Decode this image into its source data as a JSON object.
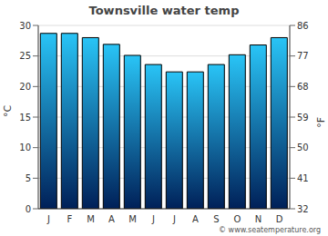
{
  "chart_data": {
    "type": "bar",
    "title": "Townsville water temp",
    "categories": [
      "J",
      "F",
      "M",
      "A",
      "M",
      "J",
      "J",
      "A",
      "S",
      "O",
      "N",
      "D"
    ],
    "values": [
      28.7,
      28.7,
      28.0,
      26.9,
      25.1,
      23.6,
      22.4,
      22.4,
      23.6,
      25.2,
      26.8,
      28.0
    ],
    "color": "#29c4f6",
    "y_label": "°C",
    "y2_label": "°F",
    "ylim": [
      0,
      30
    ],
    "yticks": [
      0,
      5,
      10,
      15,
      20,
      25,
      30
    ],
    "y2lim": [
      32,
      86
    ],
    "y2ticks": [
      32,
      41,
      50,
      59,
      68,
      77,
      86
    ],
    "grid": true,
    "annotation": "© www.seatemperature.org"
  }
}
